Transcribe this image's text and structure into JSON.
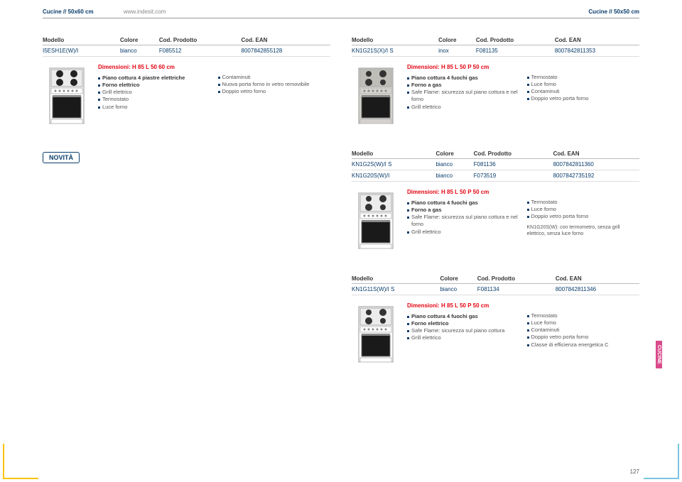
{
  "header": {
    "left_crumb": "Cucine // 50x60 cm",
    "url": "www.indesit.com",
    "right_crumb": "Cucine // 50x50 cm"
  },
  "columns": {
    "model": "Modello",
    "color": "Colore",
    "cod_prod": "Cod. Prodotto",
    "cod_ean": "Cod. EAN"
  },
  "novita_label": "NOVITÀ",
  "side_tab": "CUCINE",
  "page_number": "127",
  "products": [
    {
      "id": "p1",
      "rows": [
        {
          "model": "I5ESH1E(W)/I",
          "color": "bianco",
          "prod": "F085512",
          "ean": "8007842855128"
        }
      ],
      "stove": {
        "body": "#ffffff",
        "top": "#ececec",
        "burners": "electric"
      },
      "dims": "Dimensioni: H 85 L 50 60 cm",
      "features_left": [
        {
          "t": "Piano cottura 4 piastre elettriche",
          "b": true
        },
        {
          "t": "Forno elettrico",
          "b": true
        },
        {
          "t": "Grill elettrico"
        },
        {
          "t": "Termostato"
        },
        {
          "t": "Luce forno"
        }
      ],
      "features_right": [
        {
          "t": "Contaminuti"
        },
        {
          "t": "Nuova porta forno in vetro removibile"
        },
        {
          "t": "Doppio vetro forno"
        }
      ]
    },
    {
      "id": "p2",
      "rows": [
        {
          "model": "KN1G21S(X)/I S",
          "color": "inox",
          "prod": "F081135",
          "ean": "8007842811353"
        }
      ],
      "stove": {
        "body": "#d4d2cc",
        "top": "#bfbdb7",
        "burners": "gas"
      },
      "dims": "Dimensioni: H 85 L 50 P 50 cm",
      "features_left": [
        {
          "t": "Piano cottura 4 fuochi gas",
          "b": true
        },
        {
          "t": "Forno a gas",
          "b": true
        },
        {
          "t": "Safe Flame: sicurezza sul piano cottura e nel forno"
        },
        {
          "t": "Grill elettrico"
        }
      ],
      "features_right": [
        {
          "t": "Termostato"
        },
        {
          "t": "Luce forno"
        },
        {
          "t": "Contaminuti"
        },
        {
          "t": "Doppio vetro porta forno"
        }
      ]
    },
    {
      "id": "p3",
      "rows": [
        {
          "model": "KN1G2S(W)/I S",
          "color": "bianco",
          "prod": "F081136",
          "ean": "8007842811360"
        },
        {
          "model": "KN1G20S(W)/I",
          "color": "bianco",
          "prod": "F073519",
          "ean": "8007842735192"
        }
      ],
      "stove": {
        "body": "#ffffff",
        "top": "#ececec",
        "burners": "gas"
      },
      "dims": "Dimensioni: H 85 L 50 P 50 cm",
      "features_left": [
        {
          "t": "Piano cottura 4 fuochi gas",
          "b": true
        },
        {
          "t": "Forno a gas",
          "b": true
        },
        {
          "t": "Safe Flame: sicurezza sul piano cottura e nel forno"
        },
        {
          "t": "Grill elettrico"
        }
      ],
      "features_right": [
        {
          "t": "Termostato"
        },
        {
          "t": "Luce forno"
        },
        {
          "t": "Doppio vetro porta forno"
        }
      ],
      "note": "KN1G20S(W): con termometro, senza grill elettrico, senza luce forno"
    },
    {
      "id": "p4",
      "rows": [
        {
          "model": "KN1G11S(W)/I S",
          "color": "bianco",
          "prod": "F081134",
          "ean": "8007842811346"
        }
      ],
      "stove": {
        "body": "#ffffff",
        "top": "#ececec",
        "burners": "gas"
      },
      "dims": "Dimensioni: H 85 L 50 P 50 cm",
      "features_left": [
        {
          "t": "Piano cottura 4 fuochi gas",
          "b": true
        },
        {
          "t": "Forno elettrico",
          "b": true
        },
        {
          "t": "Safe Flame: sicurezza sul piano cottura"
        },
        {
          "t": "Grill elettrico"
        }
      ],
      "features_right": [
        {
          "t": "Termostato"
        },
        {
          "t": "Luce forno"
        },
        {
          "t": "Contaminuti"
        },
        {
          "t": "Doppio vetro porta forno"
        },
        {
          "t": "Classe di efficienza energetica C"
        }
      ]
    }
  ]
}
